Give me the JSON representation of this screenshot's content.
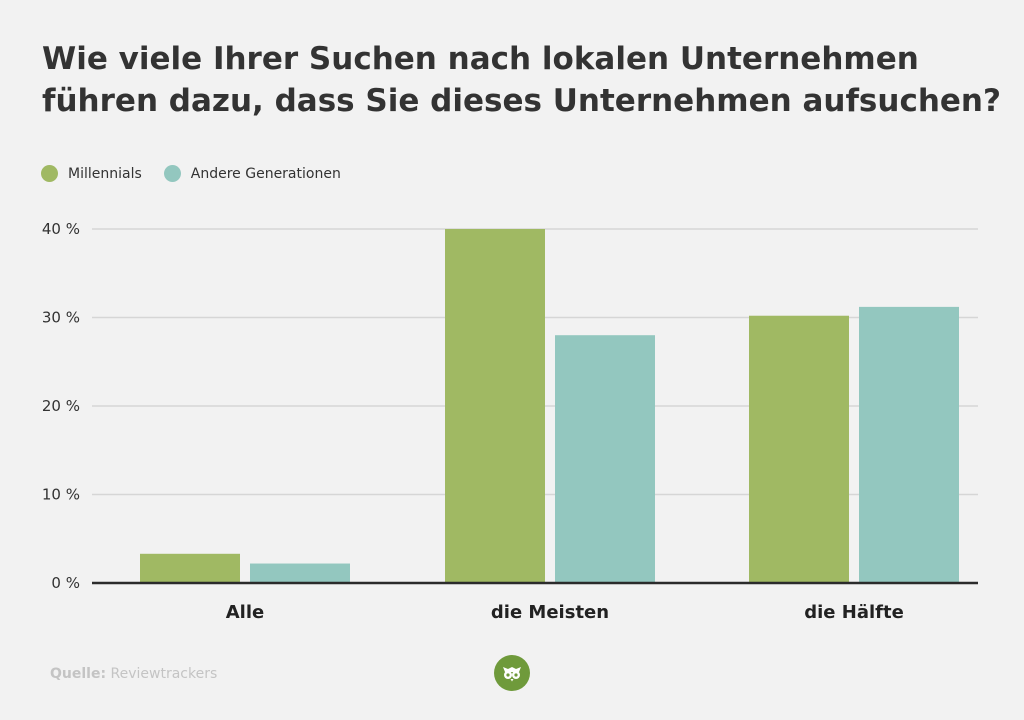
{
  "title_lines": [
    "Wie viele Ihrer Suchen nach lokalen Unternehmen",
    "führen dazu, dass Sie dieses Unternehmen aufsuchen?"
  ],
  "legend": [
    {
      "label": "Millennials",
      "color": "#a0b963"
    },
    {
      "label": "Andere Generationen",
      "color": "#93c7bf"
    }
  ],
  "source": {
    "prefix": "Quelle:",
    "name": "Reviewtrackers"
  },
  "logo_icon": "owl-icon",
  "colors": {
    "background": "#f2f2f2",
    "grid": "#d6d6d6",
    "axis": "#2b2b2b",
    "logo": "#6f9a3b"
  },
  "chart_data": {
    "type": "bar",
    "categories": [
      "Alle",
      "die Meisten",
      "die Hälfte"
    ],
    "series": [
      {
        "name": "Millennials",
        "values": [
          3.3,
          40,
          30.2
        ],
        "color": "#a0b963"
      },
      {
        "name": "Andere Generationen",
        "values": [
          2.2,
          28,
          31.2
        ],
        "color": "#93c7bf"
      }
    ],
    "ylim": [
      0,
      40
    ],
    "yticks": [
      0,
      10,
      20,
      30,
      40
    ],
    "ytick_labels": [
      "0 %",
      "10 %",
      "20 %",
      "30 %",
      "40 %"
    ],
    "grid": true,
    "legend_position": "top-left"
  }
}
